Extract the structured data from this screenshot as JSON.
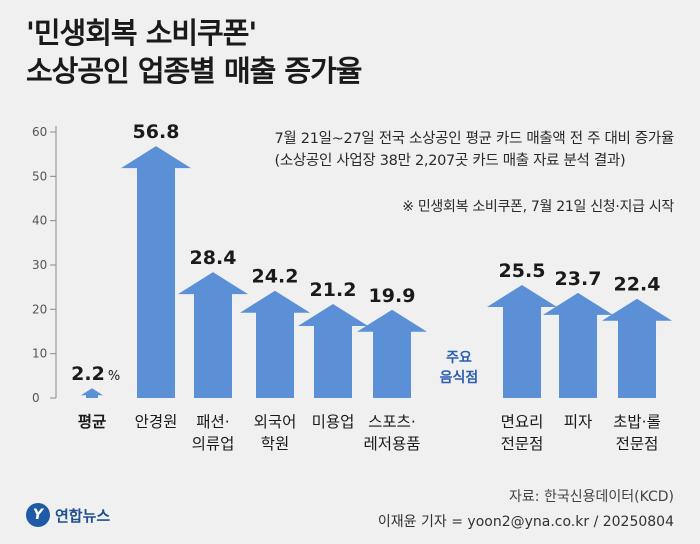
{
  "title_lines": [
    "'민생회복 소비쿠폰'",
    "소상공인 업종별 매출 증가율"
  ],
  "subtitle_lines": [
    "7월 21일~27일 전국 소상공인 평균 카드 매출액 전 주 대비 증가율",
    "(소상공인 사업장 38만 2,207곳 카드 매출 자료 분석 결과)"
  ],
  "note": "※ 민생회복 소비쿠폰, 7월 21일 신청·지급 시작",
  "source": "자료: 한국신용데이터(KCD)",
  "credit": "이재윤 기자 = yoon2@yna.co.kr / 20250804",
  "logo": {
    "mark": "Y",
    "text": "연합뉴스"
  },
  "colors": {
    "arrow": "#5b8fd6",
    "avg_arrow": "#5b8fd6",
    "label_blue": "#2b5fb0",
    "axis": "#555555"
  },
  "chart_data": {
    "type": "bar",
    "unit": "%",
    "ylim": [
      0,
      60
    ],
    "yticks": [
      0,
      10,
      20,
      30,
      40,
      50,
      60
    ],
    "group_label": [
      "주요",
      "음식점"
    ],
    "bars": [
      {
        "category": [
          "평균"
        ],
        "value": 2.2,
        "label": "2.2",
        "unit": "%",
        "group": "avg"
      },
      {
        "category": [
          "안경원"
        ],
        "value": 56.8,
        "label": "56.8",
        "group": "main"
      },
      {
        "category": [
          "패션·",
          "의류업"
        ],
        "value": 28.4,
        "label": "28.4",
        "group": "main"
      },
      {
        "category": [
          "외국어",
          "학원"
        ],
        "value": 24.2,
        "label": "24.2",
        "group": "main"
      },
      {
        "category": [
          "미용업"
        ],
        "value": 21.2,
        "label": "21.2",
        "group": "main"
      },
      {
        "category": [
          "스포츠·",
          "레저용품"
        ],
        "value": 19.9,
        "label": "19.9",
        "group": "main"
      },
      {
        "category": [
          "면요리",
          "전문점"
        ],
        "value": 25.5,
        "label": "25.5",
        "group": "food"
      },
      {
        "category": [
          "피자"
        ],
        "value": 23.7,
        "label": "23.7",
        "group": "food"
      },
      {
        "category": [
          "초밥·롤",
          "전문점"
        ],
        "value": 22.4,
        "label": "22.4",
        "group": "food"
      }
    ]
  }
}
